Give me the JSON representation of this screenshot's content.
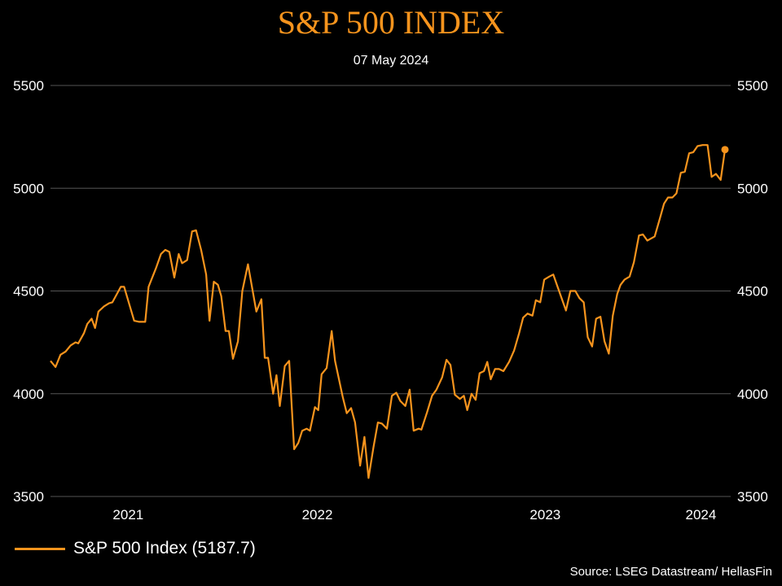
{
  "chart_data": {
    "type": "line",
    "title": "S&P 500 INDEX",
    "subtitle": "07 May 2024",
    "xlabel": "",
    "ylabel": "",
    "ylim": [
      3500,
      5500
    ],
    "yticks": [
      "5500",
      "5000",
      "4500",
      "4000",
      "3500"
    ],
    "ytick_values": [
      5500,
      5000,
      4500,
      4000,
      3500
    ],
    "grid": true,
    "legend_position": "bottom-left",
    "x_tick_labels": [
      {
        "label": "2021",
        "index": 23.2
      },
      {
        "label": "2022",
        "index": 79.7
      },
      {
        "label": "2023",
        "index": 147.8
      },
      {
        "label": "2024",
        "index": 194.3
      }
    ],
    "x_count": 207,
    "series": [
      {
        "name": "S&P 500 Index (5187.7)",
        "color": "#f7941d",
        "points": [
          [
            0,
            4160
          ],
          [
            1.5,
            4130
          ],
          [
            3,
            4190
          ],
          [
            4.5,
            4205
          ],
          [
            6,
            4235
          ],
          [
            7.5,
            4250
          ],
          [
            8.3,
            4245
          ],
          [
            10,
            4295
          ],
          [
            11,
            4340
          ],
          [
            12.3,
            4365
          ],
          [
            13.3,
            4320
          ],
          [
            14.3,
            4400
          ],
          [
            16,
            4425
          ],
          [
            17.5,
            4440
          ],
          [
            18.5,
            4445
          ],
          [
            21,
            4520
          ],
          [
            22,
            4520
          ],
          [
            25,
            4355
          ],
          [
            26.5,
            4350
          ],
          [
            28.3,
            4350
          ],
          [
            29.3,
            4520
          ],
          [
            31.5,
            4610
          ],
          [
            33,
            4680
          ],
          [
            34.3,
            4700
          ],
          [
            35.5,
            4690
          ],
          [
            37,
            4565
          ],
          [
            38.3,
            4680
          ],
          [
            39.3,
            4635
          ],
          [
            40.8,
            4650
          ],
          [
            42.3,
            4790
          ],
          [
            43.5,
            4795
          ],
          [
            45,
            4700
          ],
          [
            46.5,
            4580
          ],
          [
            47.5,
            4355
          ],
          [
            48.8,
            4545
          ],
          [
            50,
            4530
          ],
          [
            51,
            4475
          ],
          [
            52.3,
            4305
          ],
          [
            53.3,
            4305
          ],
          [
            54.5,
            4170
          ],
          [
            56,
            4255
          ],
          [
            57.3,
            4500
          ],
          [
            59,
            4630
          ],
          [
            61.5,
            4400
          ],
          [
            63,
            4460
          ],
          [
            64,
            4175
          ],
          [
            65,
            4175
          ],
          [
            66.5,
            4000
          ],
          [
            67.5,
            4090
          ],
          [
            68.5,
            3940
          ],
          [
            70,
            4135
          ],
          [
            71.3,
            4160
          ],
          [
            72.8,
            3730
          ],
          [
            74,
            3760
          ],
          [
            75.2,
            3820
          ],
          [
            76.5,
            3830
          ],
          [
            77.5,
            3820
          ],
          [
            79,
            3935
          ],
          [
            80,
            3920
          ],
          [
            81,
            4095
          ],
          [
            82.5,
            4125
          ],
          [
            84,
            4305
          ],
          [
            85,
            4160
          ],
          [
            87.3,
            3985
          ],
          [
            88.5,
            3905
          ],
          [
            89.8,
            3930
          ],
          [
            91,
            3860
          ],
          [
            92.5,
            3650
          ],
          [
            93.8,
            3790
          ],
          [
            95,
            3590
          ],
          [
            96.5,
            3740
          ],
          [
            97.8,
            3860
          ],
          [
            99,
            3855
          ],
          [
            100.5,
            3830
          ],
          [
            102,
            3990
          ],
          [
            103.3,
            4005
          ],
          [
            104.5,
            3965
          ],
          [
            106,
            3940
          ],
          [
            107.3,
            4020
          ],
          [
            108.5,
            3820
          ],
          [
            110,
            3830
          ],
          [
            110.8,
            3825
          ],
          [
            112.5,
            3910
          ],
          [
            114,
            3990
          ],
          [
            115.3,
            4020
          ],
          [
            117,
            4080
          ],
          [
            118.3,
            4165
          ],
          [
            119.5,
            4140
          ],
          [
            120.8,
            3995
          ],
          [
            122.3,
            3975
          ],
          [
            123.5,
            3990
          ],
          [
            124.5,
            3920
          ],
          [
            125.8,
            4000
          ],
          [
            127,
            3970
          ],
          [
            128.2,
            4100
          ],
          [
            129.5,
            4110
          ],
          [
            130.5,
            4155
          ],
          [
            131.5,
            4070
          ],
          [
            132.8,
            4120
          ],
          [
            134,
            4120
          ],
          [
            135.3,
            4110
          ],
          [
            137,
            4155
          ],
          [
            138.5,
            4210
          ],
          [
            140,
            4295
          ],
          [
            141.2,
            4370
          ],
          [
            142.5,
            4390
          ],
          [
            144,
            4380
          ],
          [
            145,
            4455
          ],
          [
            146.3,
            4445
          ],
          [
            147.5,
            4555
          ],
          [
            149,
            4570
          ],
          [
            150.2,
            4580
          ],
          [
            151.5,
            4520
          ],
          [
            152.8,
            4460
          ],
          [
            154,
            4405
          ],
          [
            155.3,
            4500
          ],
          [
            156.8,
            4500
          ],
          [
            158,
            4465
          ],
          [
            159.3,
            4445
          ],
          [
            160.5,
            4275
          ],
          [
            161.8,
            4230
          ],
          [
            163,
            4365
          ],
          [
            164.3,
            4375
          ],
          [
            165.5,
            4255
          ],
          [
            166.8,
            4195
          ],
          [
            168,
            4380
          ],
          [
            169.3,
            4485
          ],
          [
            170.3,
            4530
          ],
          [
            171.5,
            4555
          ],
          [
            173,
            4570
          ],
          [
            174.3,
            4640
          ],
          [
            175.8,
            4770
          ],
          [
            177,
            4775
          ],
          [
            178.3,
            4745
          ],
          [
            180.5,
            4765
          ],
          [
            182,
            4850
          ],
          [
            183.3,
            4925
          ],
          [
            184.5,
            4955
          ],
          [
            185.8,
            4955
          ],
          [
            187,
            4975
          ],
          [
            188.3,
            5075
          ],
          [
            189.5,
            5080
          ],
          [
            190.8,
            5170
          ],
          [
            192,
            5175
          ],
          [
            193.3,
            5205
          ],
          [
            194.8,
            5210
          ],
          [
            196.3,
            5210
          ],
          [
            197.5,
            5055
          ],
          [
            198.8,
            5070
          ],
          [
            200.2,
            5040
          ],
          [
            201.5,
            5187.7
          ]
        ],
        "last_value_label": "5187.7"
      }
    ]
  },
  "legend": {
    "label": "S&P 500 Index (5187.7)"
  },
  "source": "Source: LSEG Datastream/ HellasFin"
}
